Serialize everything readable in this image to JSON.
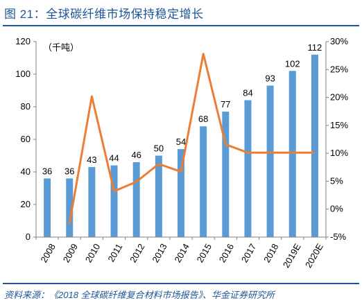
{
  "figure": {
    "title": "图 21：全球碳纤维市场保持稳定增长",
    "source": "资料来源：《2018 全球碳纤维复合材料市场报告》、华金证券研究所"
  },
  "chart_data": {
    "type": "bar",
    "categories": [
      "2008",
      "2009",
      "2010",
      "2011",
      "2012",
      "2013",
      "2014",
      "2015",
      "2016",
      "2017",
      "2018",
      "2019E",
      "2020E"
    ],
    "unit_label": "（千吨）",
    "series": [
      {
        "type": "bar",
        "axis": "left",
        "color": "#5b9bd5",
        "values": [
          36,
          36,
          43,
          44,
          46,
          50,
          54,
          68,
          77,
          84,
          93,
          102,
          112
        ]
      },
      {
        "type": "line",
        "axis": "right",
        "color": "#ed7d31",
        "values": [
          null,
          -2.6,
          20.2,
          3.2,
          4.9,
          8.1,
          6.7,
          27.8,
          11.6,
          10.1,
          10.1,
          10.1,
          10.1
        ]
      }
    ],
    "y_left": {
      "min": 0,
      "max": 120,
      "ticks": [
        "0",
        "20",
        "40",
        "60",
        "80",
        "100",
        "120"
      ]
    },
    "y_right": {
      "min": -5,
      "max": 30,
      "ticks": [
        "-5%",
        "0%",
        "5%",
        "10%",
        "15%",
        "20%",
        "25%",
        "30%"
      ]
    },
    "grid": false,
    "legend": "none"
  }
}
